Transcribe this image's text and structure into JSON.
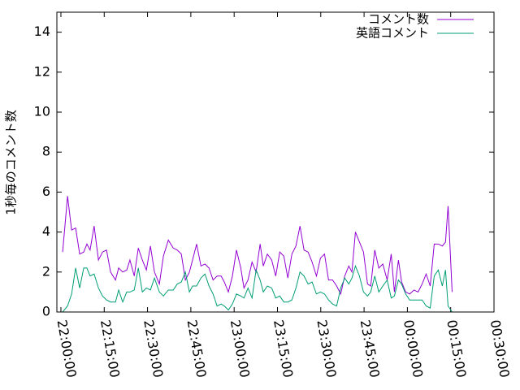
{
  "chart_data": {
    "type": "line",
    "ylabel": "1秒毎のコメント数",
    "x": [
      0.6,
      2.3,
      3.7,
      5.1,
      6.5,
      7.9,
      9.0,
      10.1,
      11.5,
      13.0,
      14.4,
      15.8,
      17.2,
      18.9,
      20.0,
      21.4,
      22.8,
      23.9,
      25.4,
      26.8,
      28.2,
      29.6,
      31.0,
      32.4,
      34.1,
      35.5,
      37.2,
      38.9,
      40.3,
      41.7,
      43.1,
      44.5,
      45.6,
      47.0,
      48.5,
      49.9,
      51.3,
      52.7,
      54.1,
      55.5,
      56.6,
      58.0,
      59.4,
      60.8,
      62.3,
      63.4,
      64.8,
      66.2,
      67.6,
      69.0,
      70.1,
      71.5,
      73.0,
      74.4,
      75.8,
      77.2,
      78.6,
      80.0,
      81.4,
      82.8,
      84.2,
      85.6,
      87.0,
      88.5,
      89.9,
      91.3,
      92.7,
      94.1,
      95.5,
      96.9,
      98.3,
      99.7,
      100.8,
      102.0,
      103.4,
      104.8,
      106.2,
      107.3,
      108.7,
      110.1,
      111.5,
      113.0,
      114.4,
      115.5,
      116.9,
      118.0,
      119.4,
      120.8,
      122.3,
      123.7,
      125.1,
      126.5,
      127.9,
      129.3,
      130.7,
      132.1,
      133.2,
      134.1,
      135.5
    ],
    "series": [
      {
        "name": "コメント数",
        "color": "#9400d3",
        "values": [
          3.0,
          5.8,
          4.1,
          4.2,
          2.9,
          3.0,
          3.4,
          3.1,
          4.3,
          2.6,
          3.0,
          3.1,
          2.0,
          1.6,
          2.2,
          2.0,
          2.1,
          2.6,
          1.8,
          3.2,
          2.6,
          2.1,
          3.3,
          2.0,
          1.4,
          2.8,
          3.6,
          3.2,
          3.1,
          2.9,
          1.6,
          2.0,
          2.6,
          3.4,
          2.3,
          2.4,
          2.2,
          1.6,
          1.8,
          1.8,
          1.5,
          1.0,
          1.8,
          3.1,
          2.2,
          1.2,
          1.6,
          2.5,
          2.0,
          3.4,
          2.3,
          2.9,
          2.6,
          1.8,
          3.0,
          2.8,
          1.7,
          2.9,
          3.3,
          4.3,
          3.1,
          3.0,
          2.5,
          1.8,
          2.7,
          2.9,
          1.6,
          1.6,
          1.3,
          0.9,
          1.8,
          2.3,
          2.0,
          4.0,
          3.5,
          3.0,
          1.4,
          1.3,
          3.1,
          2.2,
          2.4,
          1.6,
          2.9,
          1.0,
          2.6,
          1.5,
          1.0,
          0.9,
          1.1,
          1.0,
          1.4,
          1.9,
          1.3,
          3.4,
          3.4,
          3.3,
          3.5,
          5.3,
          1.0
        ]
      },
      {
        "name": "英語コメント",
        "color": "#009e73",
        "values": [
          0.0,
          0.3,
          0.9,
          2.2,
          1.2,
          2.2,
          2.2,
          1.8,
          1.9,
          1.2,
          0.8,
          0.6,
          0.5,
          0.5,
          1.1,
          0.5,
          1.0,
          1.0,
          1.1,
          2.2,
          1.0,
          1.2,
          1.1,
          1.7,
          1.0,
          0.8,
          1.1,
          1.1,
          1.4,
          1.5,
          2.0,
          1.0,
          1.3,
          1.3,
          1.7,
          1.9,
          1.3,
          0.9,
          0.3,
          0.4,
          0.3,
          0.1,
          0.4,
          0.9,
          0.8,
          0.7,
          1.2,
          0.7,
          2.1,
          1.6,
          1.0,
          1.3,
          1.2,
          0.7,
          0.8,
          0.5,
          0.5,
          0.6,
          1.2,
          2.0,
          1.8,
          1.4,
          1.5,
          0.9,
          1.0,
          0.9,
          0.6,
          0.4,
          0.3,
          1.2,
          1.7,
          1.4,
          1.7,
          2.3,
          1.8,
          1.0,
          0.8,
          1.0,
          1.8,
          1.0,
          1.3,
          1.6,
          0.7,
          0.8,
          1.6,
          1.4,
          0.9,
          0.6,
          0.6,
          0.6,
          0.6,
          0.3,
          0.2,
          1.8,
          2.1,
          1.3,
          2.1,
          0.3,
          0.0
        ]
      }
    ],
    "xlim": [
      -1.4,
      150
    ],
    "xticks": [
      {
        "value": 0,
        "label": "22:00:00"
      },
      {
        "value": 15,
        "label": "22:15:00"
      },
      {
        "value": 30,
        "label": "22:30:00"
      },
      {
        "value": 45,
        "label": "22:45:00"
      },
      {
        "value": 60,
        "label": "23:00:00"
      },
      {
        "value": 75,
        "label": "23:15:00"
      },
      {
        "value": 90,
        "label": "23:30:00"
      },
      {
        "value": 105,
        "label": "23:45:00"
      },
      {
        "value": 120,
        "label": "00:00:00"
      },
      {
        "value": 135,
        "label": "00:15:00"
      },
      {
        "value": 150,
        "label": "00:30:00"
      }
    ],
    "ylim": [
      0,
      15
    ],
    "yticks": [
      0,
      2,
      4,
      6,
      8,
      10,
      12,
      14
    ],
    "legend": "top-right"
  }
}
